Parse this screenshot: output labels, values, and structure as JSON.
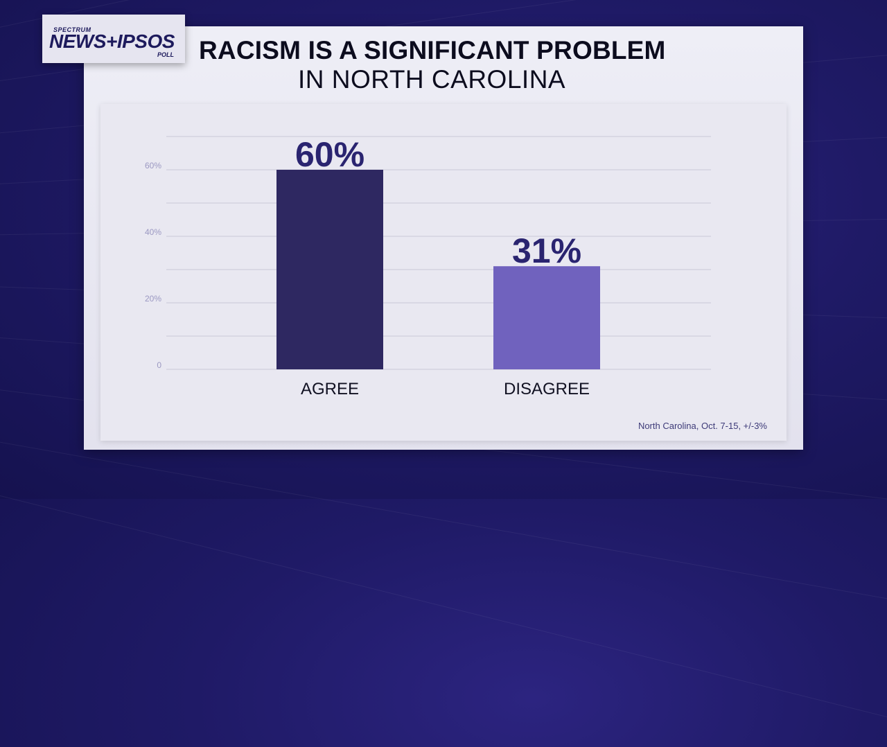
{
  "logo": {
    "top_text": "SPECTRUM",
    "main_text": "NEWS+IPSOS",
    "sub_text": "POLL"
  },
  "title": {
    "line1": "RACISM IS A SIGNIFICANT PROBLEM",
    "line2": "IN NORTH CAROLINA"
  },
  "source_note": "North Carolina, Oct. 7-15, +/-3%",
  "colors": {
    "agree_bar": "#2e2861",
    "disagree_bar": "#7062be",
    "value_label": "#2a2470",
    "grid": "#c9c8d6",
    "tick_label": "#9b98c2",
    "category_label": "#111122"
  },
  "chart_data": {
    "type": "bar",
    "categories": [
      "AGREE",
      "DISAGREE"
    ],
    "values": [
      60,
      31
    ],
    "value_labels": [
      "60%",
      "31%"
    ],
    "y_ticks": [
      {
        "value": 0,
        "label": "0"
      },
      {
        "value": 20,
        "label": "20%"
      },
      {
        "value": 40,
        "label": "40%"
      },
      {
        "value": 60,
        "label": "60%"
      }
    ],
    "ylim": [
      0,
      70
    ],
    "grid": true,
    "title": "RACISM IS A SIGNIFICANT PROBLEM IN NORTH CAROLINA"
  }
}
